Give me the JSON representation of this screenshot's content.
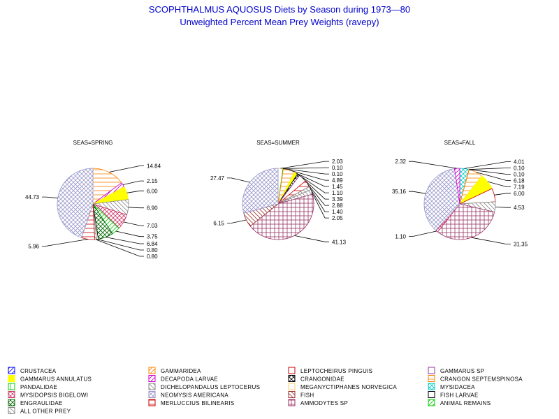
{
  "title": "SCOPHTHALMUS AQUOSUS Diets by Season during 1973—80",
  "subtitle": "Unweighted Percent Mean Prey Weights (ravepy)",
  "categories": [
    {
      "name": "CRUSTACEA",
      "color": "#0000ff",
      "pattern": "fdiag"
    },
    {
      "name": "GAMMARIDEA",
      "color": "#ff8000",
      "pattern": "fdiag"
    },
    {
      "name": "LEPTOCHEIRUS PINGUIS",
      "color": "#cc0000",
      "pattern": "open"
    },
    {
      "name": "GAMMARUS SP",
      "color": "#993399",
      "pattern": "open"
    },
    {
      "name": "GAMMARUS ANNULATUS",
      "color": "#ffff00",
      "pattern": "solid"
    },
    {
      "name": "DECAPODA LARVAE",
      "color": "#cc00cc",
      "pattern": "fdiag"
    },
    {
      "name": "CRANGONIDAE",
      "color": "#000000",
      "pattern": "xcross"
    },
    {
      "name": "CRANGON SEPTEMSPINOSA",
      "color": "#ff8000",
      "pattern": "hlines"
    },
    {
      "name": "PANDALIDAE",
      "color": "#00cc00",
      "pattern": "vlines"
    },
    {
      "name": "DICHELOPANDALUS LEPTOCERUS",
      "color": "#888888",
      "pattern": "bdiag"
    },
    {
      "name": "MEGANYCTIPHANES NORVEGICA",
      "color": "#ffcc66",
      "pattern": "open"
    },
    {
      "name": "MYSIDACEA",
      "color": "#00cccc",
      "pattern": "xcross"
    },
    {
      "name": "MYSIDOPSIS BIGELOWI",
      "color": "#cc3366",
      "pattern": "xcross"
    },
    {
      "name": "NEOMYSIS AMERICANA",
      "color": "#9999cc",
      "pattern": "xcross"
    },
    {
      "name": "FISH",
      "color": "#993333",
      "pattern": "bdiag"
    },
    {
      "name": "FISH LARVAE",
      "color": "#000000",
      "pattern": "open"
    },
    {
      "name": "ENGRAULIDAE",
      "color": "#006600",
      "pattern": "xcross"
    },
    {
      "name": "MERLUCCIUS BILINEARIS",
      "color": "#cc0000",
      "pattern": "hlines"
    },
    {
      "name": "AMMODYTES SP",
      "color": "#993366",
      "pattern": "grid"
    },
    {
      "name": "ANIMAL REMAINS",
      "color": "#00cc00",
      "pattern": "fdiag"
    },
    {
      "name": "ALL OTHER PREY",
      "color": "#888888",
      "pattern": "bdiag"
    }
  ],
  "chart_data": [
    {
      "type": "pie",
      "title": "SEAS=SPRING",
      "slices": [
        {
          "category": "CRANGON SEPTEMSPINOSA",
          "value": 14.84,
          "label": "14.84"
        },
        {
          "category": "DECAPODA LARVAE",
          "value": 2.15,
          "label": "2.15"
        },
        {
          "category": "GAMMARUS ANNULATUS",
          "value": 6.0,
          "label": "6.00"
        },
        {
          "category": "ALL OTHER PREY",
          "value": 6.9,
          "label": "6.90"
        },
        {
          "category": "MYSIDOPSIS BIGELOWI",
          "value": 7.03,
          "label": "7.03"
        },
        {
          "category": "ANIMAL REMAINS",
          "value": 3.75,
          "label": "3.75"
        },
        {
          "category": "ENGRAULIDAE",
          "value": 6.84,
          "label": "6.84"
        },
        {
          "category": "FISH LARVAE",
          "value": 0.8,
          "label": "0.80"
        },
        {
          "category": "DICHELOPANDALUS LEPTOCERUS",
          "value": 0.8,
          "label": "0.80"
        },
        {
          "category": "MERLUCCIUS BILINEARIS",
          "value": 5.96,
          "label": "5.96"
        },
        {
          "category": "NEOMYSIS AMERICANA",
          "value": 44.73,
          "label": "44.73"
        }
      ]
    },
    {
      "type": "pie",
      "title": "SEAS=SUMMER",
      "slices": [
        {
          "category": "MEGANYCTIPHANES NORVEGICA",
          "value": 2.03,
          "label": "2.03"
        },
        {
          "category": "ANIMAL REMAINS",
          "value": 0.1,
          "label": "0.10"
        },
        {
          "category": "PANDALIDAE",
          "value": 0.1,
          "label": "0.10"
        },
        {
          "category": "CRANGON SEPTEMSPINOSA",
          "value": 4.89,
          "label": "4.89"
        },
        {
          "category": "GAMMARUS ANNULATUS",
          "value": 1.45,
          "label": "1.45"
        },
        {
          "category": "CRANGONIDAE",
          "value": 1.1,
          "label": "1.10"
        },
        {
          "category": "GAMMARUS SP",
          "value": 3.39,
          "label": "3.39"
        },
        {
          "category": "MERLUCCIUS BILINEARIS",
          "value": 2.88,
          "label": "2.88"
        },
        {
          "category": "ALL OTHER PREY",
          "value": 1.4,
          "label": "1.40"
        },
        {
          "category": "DICHELOPANDALUS LEPTOCERUS",
          "value": 2.05,
          "label": "2.05"
        },
        {
          "category": "AMMODYTES SP",
          "value": 41.13,
          "label": "41.13"
        },
        {
          "category": "FISH",
          "value": 6.15,
          "label": "6.15"
        },
        {
          "category": "NEOMYSIS AMERICANA",
          "value": 27.47,
          "label": "27.47"
        }
      ]
    },
    {
      "type": "pie",
      "title": "SEAS=FALL",
      "slices": [
        {
          "category": "MYSIDACEA",
          "value": 4.01,
          "label": "4.01"
        },
        {
          "category": "MEGANYCTIPHANES NORVEGICA",
          "value": 0.1,
          "label": "0.10"
        },
        {
          "category": "GAMMARIDEA",
          "value": 0.1,
          "label": "0.10"
        },
        {
          "category": "CRANGON SEPTEMSPINOSA",
          "value": 6.18,
          "label": "6.18"
        },
        {
          "category": "GAMMARUS ANNULATUS",
          "value": 7.19,
          "label": "7.19"
        },
        {
          "category": "LEPTOCHEIRUS PINGUIS",
          "value": 6.0,
          "label": "6.00"
        },
        {
          "category": "DICHELOPANDALUS LEPTOCERUS",
          "value": 4.53,
          "label": "4.53"
        },
        {
          "category": "AMMODYTES SP",
          "value": 31.35,
          "label": "31.35"
        },
        {
          "category": "MYSIDOPSIS BIGELOWI",
          "value": 1.1,
          "label": "1.10"
        },
        {
          "category": "NEOMYSIS AMERICANA",
          "value": 35.16,
          "label": "35.16"
        },
        {
          "category": "DECAPODA LARVAE",
          "value": 2.32,
          "label": "2.32"
        }
      ]
    }
  ]
}
